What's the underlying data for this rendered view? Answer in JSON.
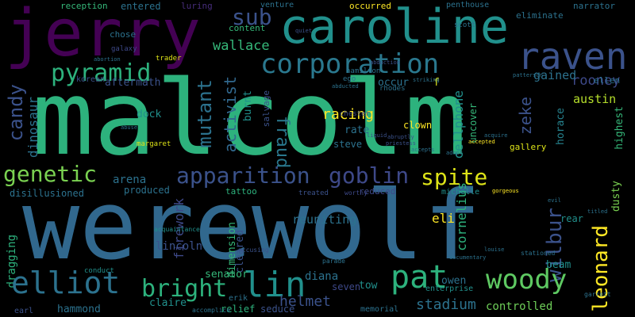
{
  "colors": {
    "background": "#000000",
    "palette": [
      "#440154",
      "#472d7b",
      "#3b528b",
      "#2c728e",
      "#21918c",
      "#28ae80",
      "#5ec962",
      "#addc30",
      "#fde725"
    ]
  },
  "words": [
    {
      "text": "malcolm",
      "color": "#2db27d"
    },
    {
      "text": "werewolf",
      "color": "#31688e"
    },
    {
      "text": "jerry",
      "color": "#440154"
    },
    {
      "text": "caroline",
      "color": "#21908c"
    },
    {
      "text": "corporation",
      "color": "#2a788e"
    },
    {
      "text": "raven",
      "color": "#3b528b"
    },
    {
      "text": "pyramid",
      "color": "#2db27d"
    },
    {
      "text": "sub",
      "color": "#3b528b"
    },
    {
      "text": "wallace",
      "color": "#35b779"
    },
    {
      "text": "mutant",
      "color": "#2c728e"
    },
    {
      "text": "activist",
      "color": "#31688e"
    },
    {
      "text": "fraud",
      "color": "#2a788e"
    },
    {
      "text": "candy",
      "color": "#3b528b"
    },
    {
      "text": "dinosaur",
      "color": "#2c728e"
    },
    {
      "text": "genetic",
      "color": "#7ad151"
    },
    {
      "text": "apparition",
      "color": "#3b528b"
    },
    {
      "text": "goblin",
      "color": "#3e4989"
    },
    {
      "text": "spite",
      "color": "#dde318"
    },
    {
      "text": "woody",
      "color": "#5ec962"
    },
    {
      "text": "pat",
      "color": "#2db27d"
    },
    {
      "text": "lin",
      "color": "#21908c"
    },
    {
      "text": "elliot",
      "color": "#2c728e"
    },
    {
      "text": "bright",
      "color": "#2db27d"
    },
    {
      "text": "leonard",
      "color": "#fde725"
    },
    {
      "text": "wilbur",
      "color": "#3b528b"
    },
    {
      "text": "cornelius",
      "color": "#2db27d"
    },
    {
      "text": "cellphone",
      "color": "#21908c"
    },
    {
      "text": "racing",
      "color": "#fde725"
    },
    {
      "text": "rooney",
      "color": "#3e4989"
    },
    {
      "text": "austin",
      "color": "#b5de2b"
    },
    {
      "text": "gained",
      "color": "#2c728e"
    },
    {
      "text": "ellen",
      "color": "#2c728e"
    },
    {
      "text": "zeke",
      "color": "#3b528b"
    },
    {
      "text": "horace",
      "color": "#26828e"
    },
    {
      "text": "highest",
      "color": "#35b779"
    },
    {
      "text": "dusty",
      "color": "#7ad151"
    },
    {
      "text": "diana",
      "color": "#2c728e"
    },
    {
      "text": "helmet",
      "color": "#3b528b"
    },
    {
      "text": "senator",
      "color": "#35b779"
    },
    {
      "text": "owen",
      "color": "#2c728e"
    },
    {
      "text": "stadium",
      "color": "#2c728e"
    },
    {
      "text": "controlled",
      "color": "#6ece58"
    },
    {
      "text": "enterprise",
      "color": "#21908c"
    },
    {
      "text": "seven",
      "color": "#3e4989"
    },
    {
      "text": "hammond",
      "color": "#2c728e"
    },
    {
      "text": "claire",
      "color": "#21908c"
    },
    {
      "text": "relief",
      "color": "#2db27d"
    },
    {
      "text": "seduce",
      "color": "#3b528b"
    },
    {
      "text": "memorial",
      "color": "#2c728e"
    },
    {
      "text": "erik",
      "color": "#2c728e"
    },
    {
      "text": "tow",
      "color": "#21908c"
    },
    {
      "text": "beam",
      "color": "#21908c"
    },
    {
      "text": "rear",
      "color": "#21908c"
    },
    {
      "text": "eli",
      "color": "#fde725"
    },
    {
      "text": "reuniting",
      "color": "#2c728e"
    },
    {
      "text": "dimension",
      "color": "#35b779"
    },
    {
      "text": "cleared",
      "color": "#3b528b"
    },
    {
      "text": "lincoln",
      "color": "#3b528b"
    },
    {
      "text": "firework",
      "color": "#3e4989"
    },
    {
      "text": "tattoo",
      "color": "#2db27d"
    },
    {
      "text": "reduced",
      "color": "#3e4989"
    },
    {
      "text": "michelle",
      "color": "#21908c"
    },
    {
      "text": "produced",
      "color": "#2c728e"
    },
    {
      "text": "arena",
      "color": "#2c728e"
    },
    {
      "text": "disillusioned",
      "color": "#2c728e"
    },
    {
      "text": "dragging",
      "color": "#2db27d"
    },
    {
      "text": "dock",
      "color": "#21908c"
    },
    {
      "text": "aftermath",
      "color": "#3b528b"
    },
    {
      "text": "burnt",
      "color": "#21908c"
    },
    {
      "text": "salvage",
      "color": "#3b528b"
    },
    {
      "text": "occur",
      "color": "#2c728e"
    },
    {
      "text": "rate",
      "color": "#2c728e"
    },
    {
      "text": "steve",
      "color": "#2c728e"
    },
    {
      "text": "clown",
      "color": "#fde725"
    },
    {
      "text": "uncover",
      "color": "#35b779"
    },
    {
      "text": "gallery",
      "color": "#dde318"
    },
    {
      "text": "f",
      "color": "#dde318"
    },
    {
      "text": "reception",
      "color": "#35b779"
    },
    {
      "text": "entered",
      "color": "#2c728e"
    },
    {
      "text": "luring",
      "color": "#472d7b"
    },
    {
      "text": "venture",
      "color": "#2c728e"
    },
    {
      "text": "occurred",
      "color": "#fde725"
    },
    {
      "text": "penthouse",
      "color": "#2c728e"
    },
    {
      "text": "eliminate",
      "color": "#2c728e"
    },
    {
      "text": "narrator",
      "color": "#2c728e"
    },
    {
      "text": "content",
      "color": "#35b779"
    },
    {
      "text": "chose",
      "color": "#2c728e"
    },
    {
      "text": "galaxy",
      "color": "#3e4989"
    },
    {
      "text": "trader",
      "color": "#dde318"
    },
    {
      "text": "korean",
      "color": "#3b528b"
    },
    {
      "text": "hamilton",
      "color": "#2c728e"
    },
    {
      "text": "ego",
      "color": "#2c728e"
    },
    {
      "text": "rhodes",
      "color": "#2c728e"
    },
    {
      "text": "scott",
      "color": "#2c728e"
    },
    {
      "text": "chester",
      "color": "#3e4989"
    },
    {
      "text": "margaret",
      "color": "#dde318"
    },
    {
      "text": "conduct",
      "color": "#21908c"
    },
    {
      "text": "earl",
      "color": "#3b528b"
    },
    {
      "text": "accomplice",
      "color": "#2c728e"
    },
    {
      "text": "acquaintance",
      "color": "#21908c"
    },
    {
      "text": "accusing",
      "color": "#3b528b"
    },
    {
      "text": "parade",
      "color": "#2c728e"
    },
    {
      "text": "treated",
      "color": "#3b528b"
    },
    {
      "text": "worthy",
      "color": "#3e4989"
    },
    {
      "text": "stationed",
      "color": "#2c728e"
    },
    {
      "text": "garrett",
      "color": "#2c728e"
    },
    {
      "text": "accepted",
      "color": "#fde725"
    },
    {
      "text": "abduction",
      "color": "#3b528b"
    },
    {
      "text": "abducted",
      "color": "#2c728e"
    },
    {
      "text": "patterson",
      "color": "#2c728e"
    },
    {
      "text": "abortion",
      "color": "#2c728e"
    },
    {
      "text": "evil",
      "color": "#2c728e"
    },
    {
      "text": "titled",
      "color": "#2c728e"
    },
    {
      "text": "louise",
      "color": "#2c728e"
    },
    {
      "text": "gorgeous",
      "color": "#fde725"
    },
    {
      "text": "documentary",
      "color": "#2c728e"
    },
    {
      "text": "abruptly",
      "color": "#3b528b"
    },
    {
      "text": "striking",
      "color": "#2c728e"
    },
    {
      "text": "liquid",
      "color": "#3b528b"
    },
    {
      "text": "priestess",
      "color": "#3b528b"
    },
    {
      "text": "accepts",
      "color": "#2c728e"
    },
    {
      "text": "adopt",
      "color": "#2c728e"
    },
    {
      "text": "quiet",
      "color": "#3b528b"
    },
    {
      "text": "abuse",
      "color": "#2c728e"
    },
    {
      "text": "acquire",
      "color": "#2c728e"
    }
  ]
}
